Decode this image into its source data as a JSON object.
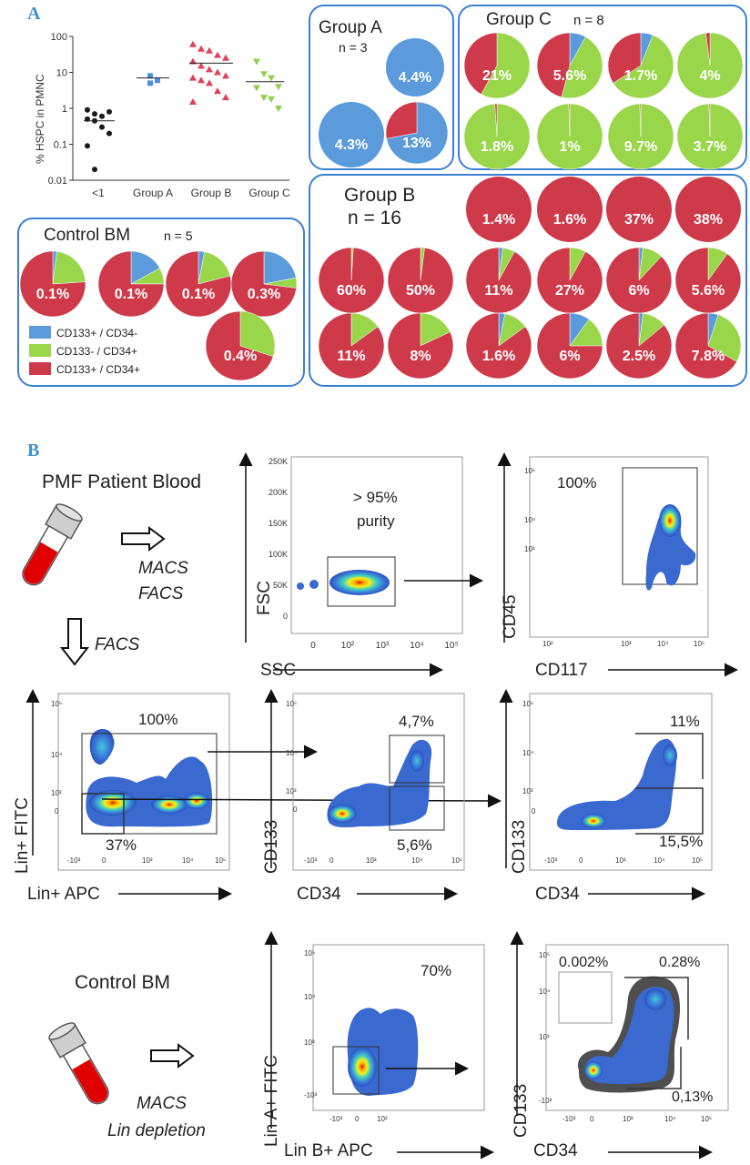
{
  "panel_a": {
    "letter": "A",
    "scatter": {
      "ylabel": "% HSPC in PMNC",
      "yticks": [
        "100",
        "10",
        "1",
        "0.1",
        "0.01"
      ],
      "categories": [
        "<1",
        "Group A",
        "Group B",
        "Group C"
      ],
      "colors": [
        "#1a1a1a",
        "#4a90e2",
        "#e0405a",
        "#8fd14f"
      ]
    },
    "legend": [
      {
        "label": "CD133+ / CD34-",
        "color": "#5b9bdc"
      },
      {
        "label": "CD133- / CD34+",
        "color": "#99d64a"
      },
      {
        "label": "CD133+ / CD34+",
        "color": "#cf3a4a"
      }
    ],
    "groups": {
      "control": {
        "title": "Control BM",
        "n": "n = 5",
        "pies": [
          {
            "label": "0.1%",
            "slices": [
              0.02,
              0.22,
              0.76
            ]
          },
          {
            "label": "0.1%",
            "slices": [
              0.17,
              0.08,
              0.75
            ]
          },
          {
            "label": "0.1%",
            "slices": [
              0.03,
              0.18,
              0.79
            ]
          },
          {
            "label": "0.3%",
            "slices": [
              0.22,
              0.05,
              0.73
            ]
          },
          {
            "label": "0.4%",
            "slices": [
              0.0,
              0.3,
              0.7
            ]
          }
        ]
      },
      "a": {
        "title": "Group A",
        "n": "n = 3",
        "pies": [
          {
            "label": "4.4%",
            "slices": [
              1.0,
              0.0,
              0.0
            ]
          },
          {
            "label": "4.3%",
            "slices": [
              1.0,
              0.0,
              0.0
            ]
          },
          {
            "label": "13%",
            "slices": [
              0.72,
              0.0,
              0.28
            ]
          }
        ]
      },
      "c": {
        "title": "Group C",
        "n": "n = 8",
        "pies": [
          {
            "label": "21%",
            "slices": [
              0.0,
              0.58,
              0.42
            ]
          },
          {
            "label": "5.6%",
            "slices": [
              0.08,
              0.46,
              0.46
            ]
          },
          {
            "label": "1.7%",
            "slices": [
              0.06,
              0.6,
              0.34
            ]
          },
          {
            "label": "4%",
            "slices": [
              0.0,
              0.98,
              0.02
            ]
          },
          {
            "label": "1.8%",
            "slices": [
              0.0,
              0.99,
              0.01
            ]
          },
          {
            "label": "1%",
            "slices": [
              0.0,
              0.995,
              0.005
            ]
          },
          {
            "label": "9.7%",
            "slices": [
              0.0,
              0.995,
              0.005
            ]
          },
          {
            "label": "3.7%",
            "slices": [
              0.0,
              0.995,
              0.005
            ]
          }
        ]
      },
      "b": {
        "title": "Group B",
        "n": "n = 16",
        "pies": [
          {
            "label": "1.4%",
            "slices": [
              0,
              0,
              1
            ]
          },
          {
            "label": "1.6%",
            "slices": [
              0,
              0,
              1
            ]
          },
          {
            "label": "37%",
            "slices": [
              0,
              0,
              1
            ]
          },
          {
            "label": "38%",
            "slices": [
              0,
              0,
              1
            ]
          },
          {
            "label": "60%",
            "slices": [
              0,
              0.01,
              0.99
            ]
          },
          {
            "label": "50%",
            "slices": [
              0,
              0.02,
              0.98
            ]
          },
          {
            "label": "11%",
            "slices": [
              0.02,
              0.06,
              0.92
            ]
          },
          {
            "label": "27%",
            "slices": [
              0.0,
              0.08,
              0.92
            ]
          },
          {
            "label": "6%",
            "slices": [
              0.02,
              0.1,
              0.88
            ]
          },
          {
            "label": "5.6%",
            "slices": [
              0.0,
              0.1,
              0.9
            ]
          },
          {
            "label": "11%",
            "slices": [
              0.0,
              0.15,
              0.85
            ]
          },
          {
            "label": "8%",
            "slices": [
              0.0,
              0.18,
              0.82
            ]
          },
          {
            "label": "1.6%",
            "slices": [
              0.03,
              0.12,
              0.85
            ]
          },
          {
            "label": "6%",
            "slices": [
              0.1,
              0.15,
              0.75
            ]
          },
          {
            "label": "2.5%",
            "slices": [
              0.02,
              0.12,
              0.86
            ]
          },
          {
            "label": "7.8%",
            "slices": [
              0.05,
              0.28,
              0.67
            ]
          }
        ]
      }
    }
  },
  "panel_b": {
    "letter": "B",
    "pmf_title": "PMF Patient Blood",
    "macs": "MACS",
    "facs": "FACS",
    "facs_down": "FACS",
    "plot1": {
      "x": "SSC",
      "y": "FSC",
      "yticks": [
        "250K",
        "200K",
        "150K",
        "100K",
        "50K",
        "0"
      ],
      "xticks": [
        "0",
        "10²",
        "10³",
        "10⁴",
        "10⁵"
      ],
      "text1": "> 95%",
      "text2": "purity"
    },
    "plot2": {
      "x": "CD117",
      "y": "CD45",
      "pct": "100%",
      "ticks": [
        "10⁵",
        "10⁴",
        "10³",
        "10²",
        "10³",
        "10⁴",
        "10⁵"
      ]
    },
    "plot3": {
      "x": "Lin+ APC",
      "y": "Lin+ FITC",
      "pct_top": "100%",
      "pct_gate": "37%"
    },
    "plot4": {
      "x": "CD34",
      "y": "CD133",
      "pct_top": "4,7%",
      "pct_bot": "5,6%"
    },
    "plot5": {
      "x": "CD34",
      "y": "CD133",
      "pct_top": "11%",
      "pct_bot": "15,5%"
    },
    "control_title": "Control BM",
    "macs2": "MACS",
    "lin_depletion": "Lin depletion",
    "plot6": {
      "x": "Lin B+ APC",
      "y": "Lin A+ FITC",
      "pct": "70%"
    },
    "plot7": {
      "x": "CD34",
      "y": "CD133",
      "pct_a": "0.002%",
      "pct_b": "0.28%",
      "pct_c": "0,13%"
    },
    "tick_labels": {
      "e5": "10⁵",
      "e4": "10⁴",
      "e3": "10³",
      "zero": "0",
      "neg3": "-10³"
    }
  }
}
